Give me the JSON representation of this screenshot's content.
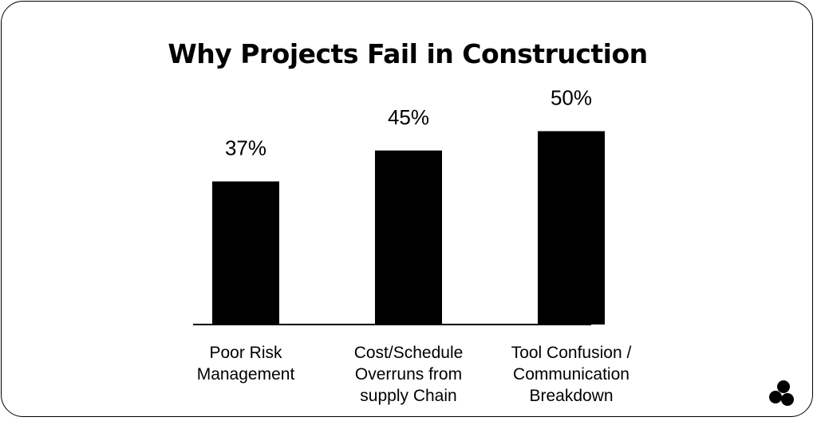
{
  "chart_data": {
    "type": "bar",
    "title": "Why Projects Fail in Construction",
    "categories": [
      "Poor Risk Management",
      "Cost/Schedule Overruns from supply Chain",
      "Tool Confusion / Communication Breakdown"
    ],
    "category_lines": [
      [
        "Poor Risk",
        "Management"
      ],
      [
        "Cost/Schedule",
        "Overruns from",
        "supply Chain"
      ],
      [
        "Tool Confusion /",
        "Communication",
        "Breakdown"
      ]
    ],
    "values": [
      37,
      45,
      50
    ],
    "data_labels": [
      "37%",
      "45%",
      "50%"
    ],
    "unit": "%",
    "xlabel": "",
    "ylabel": "",
    "grid": false,
    "legend": "none",
    "bar_color": "#000000"
  },
  "logo": {
    "icon": "trefoil-logo-icon"
  }
}
